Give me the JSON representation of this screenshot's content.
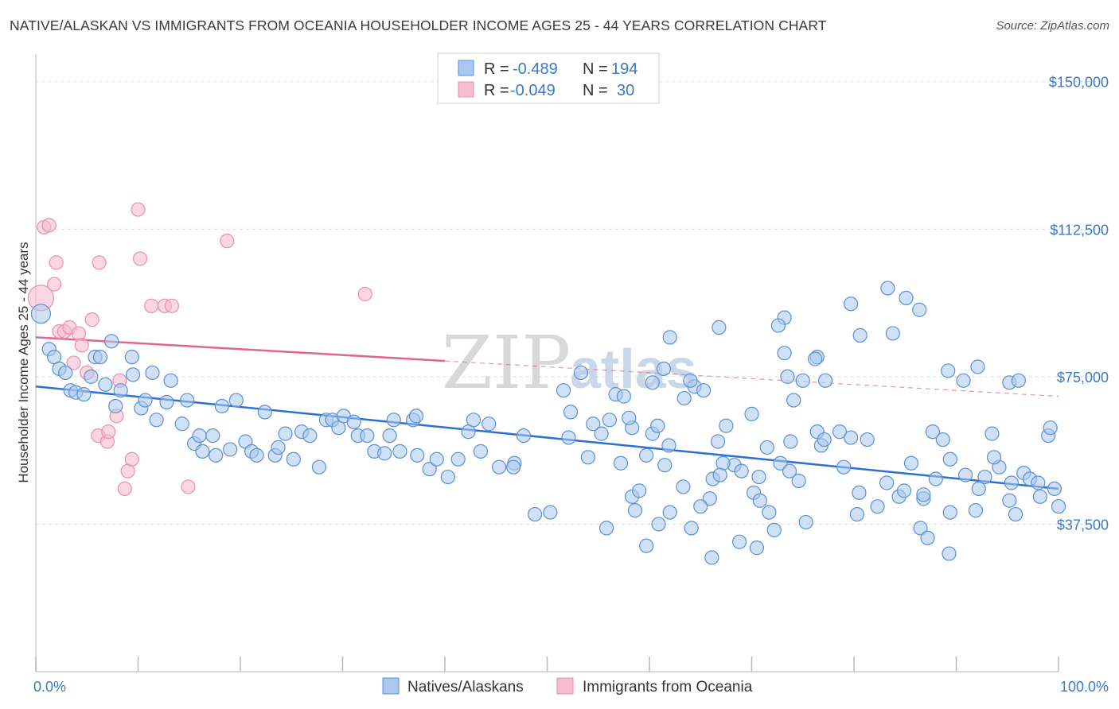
{
  "title": "NATIVE/ALASKAN VS IMMIGRANTS FROM OCEANIA HOUSEHOLDER INCOME AGES 25 - 44 YEARS CORRELATION CHART",
  "source": "Source: ZipAtlas.com",
  "watermark": {
    "zip": "ZIP",
    "atlas": "atlas"
  },
  "colors": {
    "blue_fill": "#aac8ef",
    "blue_stroke": "#5b90d6",
    "blue_line": "#2f6fd0",
    "pink_fill": "#f7bdd0",
    "pink_stroke": "#e890ad",
    "pink_line": "#e0668f",
    "grid": "#dcdcdc",
    "tick_text": "#3b78c6"
  },
  "legend": {
    "rows": [
      {
        "r_label": "R =",
        "r_value": "-0.489",
        "n_label": "N =",
        "n_value": "194"
      },
      {
        "r_label": "R =",
        "r_value": "-0.049",
        "n_label": "N =",
        "n_value": "30"
      }
    ]
  },
  "bottom_legend": {
    "series1": "Natives/Alaskans",
    "series2": "Immigrants from Oceania"
  },
  "chart_data": {
    "type": "scatter",
    "xlabel": "",
    "ylabel": "Householder Income Ages 25 - 44 years",
    "xlim": [
      0,
      100
    ],
    "ylim": [
      0,
      155000
    ],
    "x_tick_labels": [
      "0.0%",
      "100.0%"
    ],
    "y_ticks": [
      37500,
      75000,
      112500,
      150000
    ],
    "y_tick_labels": [
      "$37,500",
      "$75,000",
      "$112,500",
      "$150,000"
    ],
    "series": [
      {
        "name": "Natives/Alaskans",
        "trend": {
          "x": [
            0,
            100
          ],
          "y": [
            72500,
            46500
          ]
        },
        "points": [
          [
            0.5,
            91000
          ],
          [
            1.3,
            82000
          ],
          [
            1.8,
            80000
          ],
          [
            2.3,
            77000
          ],
          [
            2.9,
            76000
          ],
          [
            3.4,
            71500
          ],
          [
            3.9,
            71000
          ],
          [
            4.7,
            70500
          ],
          [
            5.4,
            75000
          ],
          [
            5.8,
            80000
          ],
          [
            6.3,
            80000
          ],
          [
            6.8,
            73000
          ],
          [
            7.4,
            84000
          ],
          [
            7.8,
            67500
          ],
          [
            8.3,
            71500
          ],
          [
            9.4,
            80000
          ],
          [
            9.5,
            75500
          ],
          [
            10.3,
            67000
          ],
          [
            10.7,
            69000
          ],
          [
            11.4,
            76000
          ],
          [
            11.8,
            64000
          ],
          [
            12.8,
            68500
          ],
          [
            13.2,
            74000
          ],
          [
            14.3,
            63000
          ],
          [
            14.8,
            69000
          ],
          [
            15.5,
            58000
          ],
          [
            16.0,
            60000
          ],
          [
            16.3,
            56000
          ],
          [
            17.3,
            60000
          ],
          [
            17.6,
            55000
          ],
          [
            18.2,
            67500
          ],
          [
            19.0,
            56500
          ],
          [
            19.6,
            69000
          ],
          [
            20.5,
            58500
          ],
          [
            21.1,
            56000
          ],
          [
            21.6,
            55000
          ],
          [
            22.4,
            66000
          ],
          [
            23.4,
            55000
          ],
          [
            23.7,
            57000
          ],
          [
            24.4,
            60500
          ],
          [
            25.2,
            54000
          ],
          [
            26.0,
            61000
          ],
          [
            26.8,
            60000
          ],
          [
            27.7,
            52000
          ],
          [
            28.4,
            64000
          ],
          [
            29.0,
            64000
          ],
          [
            29.6,
            62000
          ],
          [
            30.1,
            65000
          ],
          [
            31.1,
            63500
          ],
          [
            31.5,
            60000
          ],
          [
            32.4,
            60000
          ],
          [
            33.1,
            56000
          ],
          [
            34.1,
            55500
          ],
          [
            34.6,
            60000
          ],
          [
            35.0,
            64000
          ],
          [
            35.6,
            56000
          ],
          [
            37.3,
            55000
          ],
          [
            36.9,
            64000
          ],
          [
            37.2,
            65000
          ],
          [
            38.5,
            51500
          ],
          [
            39.2,
            54000
          ],
          [
            40.3,
            49500
          ],
          [
            41.3,
            54000
          ],
          [
            42.3,
            61000
          ],
          [
            42.8,
            64000
          ],
          [
            43.5,
            56000
          ],
          [
            44.3,
            63000
          ],
          [
            45.3,
            52000
          ],
          [
            46.8,
            53000
          ],
          [
            46.7,
            52000
          ],
          [
            47.7,
            60000
          ],
          [
            48.8,
            40000
          ],
          [
            50.3,
            40500
          ],
          [
            51.6,
            71500
          ],
          [
            52.3,
            66000
          ],
          [
            52.1,
            59500
          ],
          [
            53.3,
            76000
          ],
          [
            54.5,
            63000
          ],
          [
            54.0,
            54500
          ],
          [
            55.8,
            36500
          ],
          [
            55.3,
            60500
          ],
          [
            56.1,
            64000
          ],
          [
            57.2,
            53000
          ],
          [
            56.7,
            70500
          ],
          [
            58.3,
            62000
          ],
          [
            58.3,
            44500
          ],
          [
            59.0,
            46000
          ],
          [
            57.5,
            70000
          ],
          [
            60.3,
            60500
          ],
          [
            60.9,
            37500
          ],
          [
            61.9,
            57500
          ],
          [
            60.8,
            62500
          ],
          [
            63.4,
            69500
          ],
          [
            64.4,
            72500
          ],
          [
            65.3,
            71500
          ],
          [
            66.2,
            49000
          ],
          [
            67.5,
            62500
          ],
          [
            66.7,
            58500
          ],
          [
            68.3,
            52500
          ],
          [
            70.2,
            45500
          ],
          [
            70.0,
            65500
          ],
          [
            70.8,
            43500
          ],
          [
            71.5,
            57000
          ],
          [
            72.8,
            53000
          ],
          [
            73.8,
            58500
          ],
          [
            74.6,
            48500
          ],
          [
            73.7,
            51000
          ],
          [
            74.1,
            69000
          ],
          [
            75.3,
            38000
          ],
          [
            76.4,
            61000
          ],
          [
            76.8,
            57500
          ],
          [
            77.1,
            59000
          ],
          [
            78.6,
            61000
          ],
          [
            79.0,
            52000
          ],
          [
            79.7,
            59500
          ],
          [
            80.3,
            40000
          ],
          [
            80.5,
            45500
          ],
          [
            81.3,
            59000
          ],
          [
            82.3,
            42000
          ],
          [
            83.2,
            48000
          ],
          [
            84.4,
            44500
          ],
          [
            84.9,
            46000
          ],
          [
            86.5,
            36500
          ],
          [
            86.8,
            44000
          ],
          [
            87.2,
            34000
          ],
          [
            87.7,
            61000
          ],
          [
            88.7,
            59000
          ],
          [
            89.3,
            30000
          ],
          [
            89.4,
            40500
          ],
          [
            90.9,
            50000
          ],
          [
            91.9,
            41000
          ],
          [
            92.2,
            46500
          ],
          [
            93.5,
            60500
          ],
          [
            94.2,
            52000
          ],
          [
            95.2,
            43500
          ],
          [
            95.8,
            40000
          ],
          [
            96.6,
            50500
          ],
          [
            97.2,
            49000
          ],
          [
            98.2,
            44500
          ],
          [
            98.0,
            48000
          ],
          [
            99.0,
            60000
          ],
          [
            99.2,
            62000
          ],
          [
            99.6,
            46500
          ],
          [
            100.0,
            42000
          ],
          [
            62.0,
            85000
          ],
          [
            66.8,
            87500
          ],
          [
            73.2,
            90000
          ],
          [
            73.2,
            81000
          ],
          [
            72.6,
            88000
          ],
          [
            75.0,
            74000
          ],
          [
            76.4,
            80000
          ],
          [
            77.2,
            74000
          ],
          [
            76.2,
            79500
          ],
          [
            79.7,
            93500
          ],
          [
            80.6,
            85500
          ],
          [
            83.3,
            97500
          ],
          [
            83.8,
            86000
          ],
          [
            85.1,
            95000
          ],
          [
            86.4,
            92000
          ],
          [
            89.2,
            76500
          ],
          [
            90.7,
            74000
          ],
          [
            92.1,
            77500
          ],
          [
            95.2,
            73500
          ],
          [
            96.1,
            74000
          ],
          [
            89.4,
            54000
          ],
          [
            93.7,
            54500
          ],
          [
            85.6,
            53000
          ],
          [
            92.8,
            49500
          ],
          [
            86.8,
            45000
          ],
          [
            95.4,
            48000
          ],
          [
            88.0,
            49000
          ],
          [
            64.0,
            74000
          ],
          [
            73.5,
            75000
          ],
          [
            60.3,
            73500
          ],
          [
            61.4,
            77000
          ],
          [
            58.0,
            64500
          ],
          [
            59.7,
            55000
          ],
          [
            58.6,
            41000
          ],
          [
            59.7,
            32000
          ],
          [
            64.1,
            36500
          ],
          [
            66.1,
            29000
          ],
          [
            68.8,
            33000
          ],
          [
            70.5,
            31500
          ],
          [
            72.2,
            36000
          ],
          [
            65.9,
            44000
          ],
          [
            70.7,
            49500
          ],
          [
            71.7,
            40500
          ],
          [
            65.0,
            42000
          ],
          [
            62.0,
            40500
          ],
          [
            69.0,
            51000
          ],
          [
            67.2,
            53000
          ],
          [
            63.3,
            47000
          ],
          [
            61.5,
            52500
          ],
          [
            66.9,
            50000
          ]
        ]
      },
      {
        "name": "Immigrants from Oceania",
        "trend": {
          "x": [
            0,
            40
          ],
          "y": [
            85000,
            79000
          ],
          "dashed_to": [
            100,
            70000
          ]
        },
        "points": [
          [
            0.5,
            95000
          ],
          [
            0.8,
            113000
          ],
          [
            1.3,
            113500
          ],
          [
            1.8,
            98500
          ],
          [
            2.0,
            104000
          ],
          [
            2.3,
            86500
          ],
          [
            2.8,
            86500
          ],
          [
            3.3,
            87500
          ],
          [
            3.7,
            78500
          ],
          [
            4.2,
            86000
          ],
          [
            4.5,
            83000
          ],
          [
            5.0,
            76000
          ],
          [
            5.5,
            89500
          ],
          [
            6.1,
            60000
          ],
          [
            6.2,
            104000
          ],
          [
            7.0,
            58500
          ],
          [
            7.1,
            61000
          ],
          [
            7.9,
            65000
          ],
          [
            8.2,
            74000
          ],
          [
            8.7,
            46500
          ],
          [
            9.0,
            51000
          ],
          [
            9.4,
            54000
          ],
          [
            10.0,
            117500
          ],
          [
            10.2,
            105000
          ],
          [
            11.3,
            93000
          ],
          [
            12.6,
            93000
          ],
          [
            13.3,
            93000
          ],
          [
            14.9,
            47000
          ],
          [
            18.7,
            109500
          ],
          [
            32.2,
            96000
          ]
        ]
      }
    ]
  }
}
